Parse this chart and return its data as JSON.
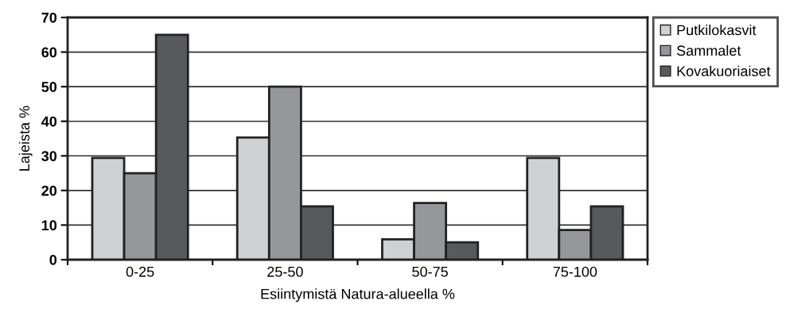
{
  "chart_data": {
    "type": "bar",
    "xlabel": "Esiintymistä Natura-alueella %",
    "ylabel": "Lajeista %",
    "categories": [
      "0-25",
      "25-50",
      "50-75",
      "75-100"
    ],
    "series": [
      {
        "name": "Putkilokasvit",
        "color": "#d0d1d3",
        "values": [
          29.4,
          35.3,
          5.9,
          29.4
        ]
      },
      {
        "name": "Sammalet",
        "color": "#96979b",
        "values": [
          25,
          50,
          16.4,
          8.6
        ]
      },
      {
        "name": "Kovakuoriaiset",
        "color": "#58595b",
        "values": [
          65,
          15.4,
          5,
          15.4
        ]
      }
    ],
    "ylim": [
      0,
      70
    ],
    "yticks": [
      0,
      10,
      20,
      30,
      40,
      50,
      60,
      70
    ],
    "grid": "y",
    "legend": "right"
  }
}
